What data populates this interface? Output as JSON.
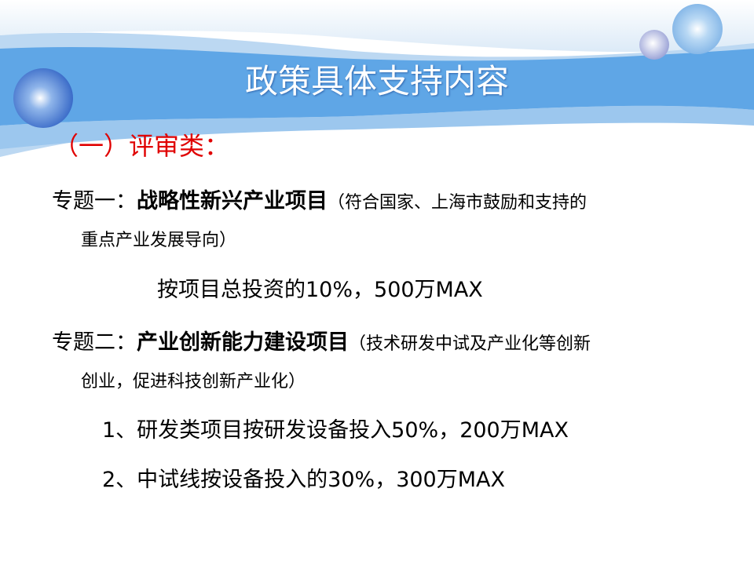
{
  "slide": {
    "title": "政策具体支持内容",
    "section_heading": "（一）评审类：",
    "topic1": {
      "label": "专题一：",
      "name": "战略性新兴产业项目",
      "note_line1": "（符合国家、上海市鼓励和支持的",
      "note_line2": "重点产业发展导向）",
      "support": "按项目总投资的10%，500万MAX"
    },
    "topic2": {
      "label": "专题二：",
      "name": "产业创新能力建设项目",
      "note_line1": "（技术研发中试及产业化等创新",
      "note_line2": "创业，促进科技创新产业化）",
      "items": [
        "1、研发类项目按研发设备投入50%，200万MAX",
        "2、中试线按设备投入的30%，300万MAX"
      ]
    }
  },
  "colors": {
    "banner": "#5fa6e6",
    "accent_red": "#e00000",
    "title_text": "#ffffff"
  }
}
